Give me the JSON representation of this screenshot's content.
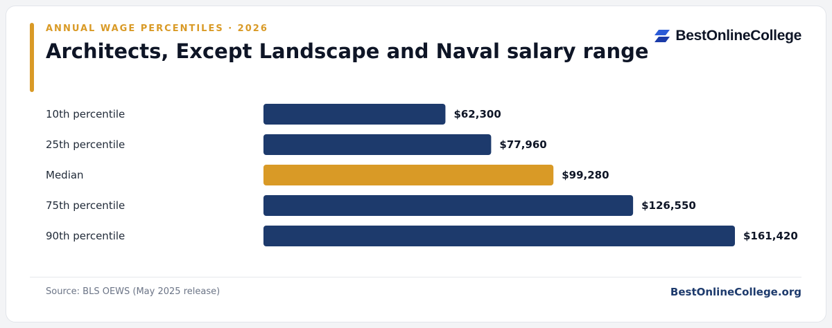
{
  "header": {
    "eyebrow": "ANNUAL WAGE PERCENTILES · 2026",
    "title": "Architects, Except Landscape and Naval salary range"
  },
  "brand": {
    "logo_text": "BestOnlineCollege",
    "logo_icon": "stacked-parallelogram-icon",
    "site": "BestOnlineCollege.org"
  },
  "footer": {
    "source": "Source: BLS OEWS (May 2025 release)"
  },
  "colors": {
    "accent": "#d99a26",
    "bar": "#1d3a6c",
    "highlight": "#d99a26",
    "navy": "#1d3a6c",
    "logo_blue": "#2b5bd7",
    "logo_dark_blue": "#1b3ba8"
  },
  "chart_data": {
    "type": "bar",
    "orientation": "horizontal",
    "categories": [
      "10th percentile",
      "25th percentile",
      "Median",
      "75th percentile",
      "90th percentile"
    ],
    "values": [
      62300,
      77960,
      99280,
      126550,
      161420
    ],
    "value_labels": [
      "$62,300",
      "$77,960",
      "$99,280",
      "$126,550",
      "$161,420"
    ],
    "highlight_category": "Median",
    "title": "",
    "xlabel": "",
    "ylabel": "",
    "xlim": [
      0,
      161420
    ],
    "grid": false,
    "legend": "none"
  }
}
